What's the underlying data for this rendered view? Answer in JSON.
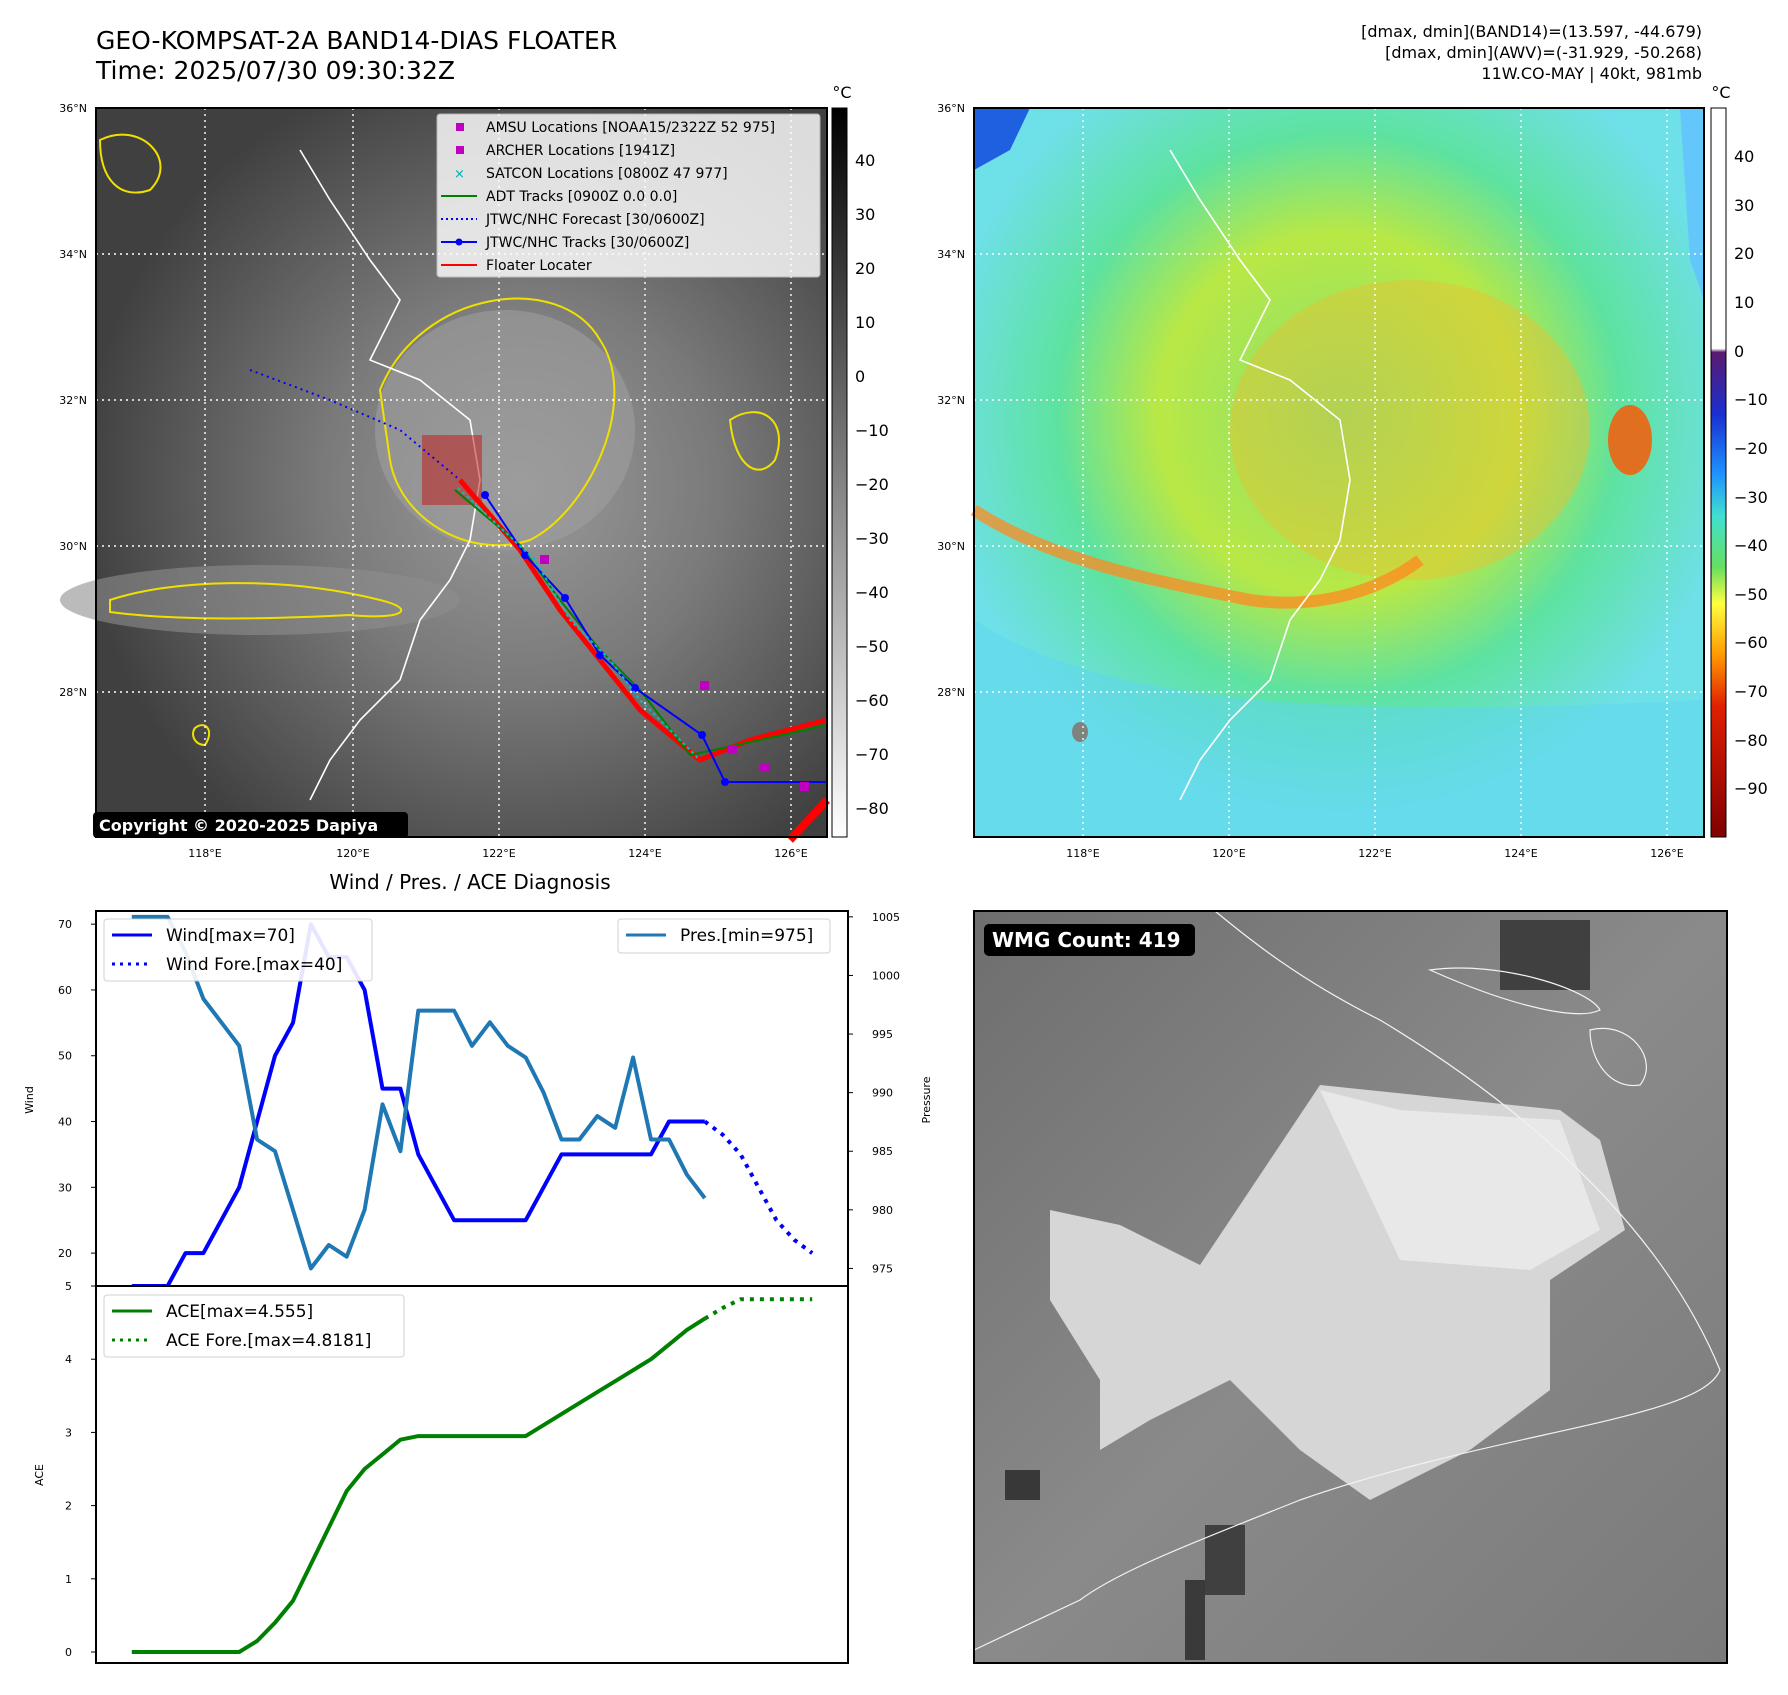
{
  "header": {
    "title": "GEO-KOMPSAT-2A BAND14-DIAS FLOATER",
    "time": "Time: 2025/07/30 09:30:32Z",
    "info_line1": "[dmax, dmin](BAND14)=(13.597, -44.679)",
    "info_line2": "[dmax, dmin](AWV)=(-31.929, -50.268)",
    "info_line3": "11W.CO-MAY | 40kt, 981mb"
  },
  "map": {
    "lat_labels": [
      "36°N",
      "34°N",
      "32°N",
      "30°N",
      "28°N"
    ],
    "lon_labels": [
      "118°E",
      "120°E",
      "122°E",
      "124°E",
      "126°E"
    ],
    "copyright": "Copyright © 2020-2025 Dapiya",
    "colorbar_unit": "°C",
    "gray_colorbar_ticks": [
      "40",
      "30",
      "20",
      "10",
      "0",
      "−10",
      "−20",
      "−30",
      "−40",
      "−50",
      "−60",
      "−70",
      "−80"
    ],
    "color_colorbar_ticks": [
      "40",
      "30",
      "20",
      "10",
      "0",
      "−10",
      "−20",
      "−30",
      "−40",
      "−50",
      "−60",
      "−70",
      "−80",
      "−90"
    ],
    "legend": [
      {
        "label": "AMSU Locations [NOAA15/2322Z 52 975]",
        "color": "#c000c0",
        "marker": "square"
      },
      {
        "label": "ARCHER Locations [1941Z]",
        "color": "#c000c0",
        "marker": "square"
      },
      {
        "label": "SATCON Locations [0800Z 47 977]",
        "color": "#00b0b0",
        "marker": "x"
      },
      {
        "label": "ADT Tracks [0900Z 0.0 0.0]",
        "color": "#008000",
        "marker": "line"
      },
      {
        "label": "JTWC/NHC Forecast [30/0600Z]",
        "color": "#0000ff",
        "marker": "dotted"
      },
      {
        "label": "JTWC/NHC Tracks [30/0600Z]",
        "color": "#0000ff",
        "marker": "line-dot"
      },
      {
        "label": "Floater Locater",
        "color": "#ff0000",
        "marker": "line"
      }
    ],
    "wmg_count": "WMG Count: 419"
  },
  "chart_data": [
    {
      "type": "line",
      "title": "Wind / Pres. / ACE Diagnosis",
      "ylabel": "Wind",
      "y2label": "Pressure",
      "ylim": [
        15,
        72
      ],
      "y2lim": [
        973.5,
        1005.5
      ],
      "yticks": [
        20,
        30,
        40,
        50,
        60,
        70
      ],
      "y2ticks": [
        975,
        980,
        985,
        990,
        995,
        1000,
        1005
      ],
      "series": [
        {
          "name": "Wind[max=70]",
          "axis": "left",
          "color": "#0000ff",
          "style": "solid",
          "x": [
            0,
            1,
            2,
            3,
            4,
            5,
            6,
            7,
            8,
            9,
            10,
            11,
            12,
            13,
            14,
            15,
            16,
            17,
            18,
            19,
            20,
            21,
            22,
            23,
            24,
            25,
            26,
            27,
            28,
            29,
            30,
            31,
            32
          ],
          "values": [
            15,
            15,
            15,
            20,
            20,
            25,
            30,
            40,
            50,
            55,
            70,
            65,
            65,
            60,
            45,
            45,
            35,
            30,
            25,
            25,
            25,
            25,
            25,
            30,
            35,
            35,
            35,
            35,
            35,
            35,
            40,
            40,
            40
          ]
        },
        {
          "name": "Wind Fore.[max=40]",
          "axis": "left",
          "color": "#0000ff",
          "style": "dotted",
          "x": [
            32,
            33,
            34,
            35,
            36,
            37,
            38
          ],
          "values": [
            40,
            38,
            35,
            30,
            25,
            22,
            20
          ]
        },
        {
          "name": "Pres.[min=975]",
          "axis": "right",
          "color": "#1f77b4",
          "style": "solid",
          "x": [
            0,
            1,
            2,
            3,
            4,
            5,
            6,
            7,
            8,
            9,
            10,
            11,
            12,
            13,
            14,
            15,
            16,
            17,
            18,
            19,
            20,
            21,
            22,
            23,
            24,
            25,
            26,
            27,
            28,
            29,
            30,
            31,
            32
          ],
          "values": [
            1005,
            1005,
            1005,
            1002,
            998,
            996,
            994,
            986,
            985,
            980,
            975,
            977,
            976,
            980,
            989,
            985,
            997,
            997,
            997,
            994,
            996,
            994,
            993,
            990,
            986,
            986,
            988,
            987,
            993,
            986,
            986,
            983,
            981
          ]
        }
      ]
    },
    {
      "type": "line",
      "ylabel": "ACE",
      "ylim": [
        -0.15,
        5.0
      ],
      "yticks": [
        0,
        1,
        2,
        3,
        4,
        5
      ],
      "series": [
        {
          "name": "ACE[max=4.555]",
          "color": "#008000",
          "style": "solid",
          "x": [
            0,
            1,
            2,
            3,
            4,
            5,
            6,
            7,
            8,
            9,
            10,
            11,
            12,
            13,
            14,
            15,
            16,
            17,
            18,
            19,
            20,
            21,
            22,
            23,
            24,
            25,
            26,
            27,
            28,
            29,
            30,
            31,
            32
          ],
          "values": [
            0,
            0,
            0,
            0,
            0,
            0,
            0,
            0.15,
            0.4,
            0.7,
            1.2,
            1.7,
            2.2,
            2.5,
            2.7,
            2.9,
            2.95,
            2.95,
            2.95,
            2.95,
            2.95,
            2.95,
            2.95,
            3.1,
            3.25,
            3.4,
            3.55,
            3.7,
            3.85,
            4.0,
            4.2,
            4.4,
            4.555
          ]
        },
        {
          "name": "ACE Fore.[max=4.8181]",
          "color": "#008000",
          "style": "dotted",
          "x": [
            32,
            33,
            34,
            35,
            36,
            37,
            38
          ],
          "values": [
            4.555,
            4.7,
            4.8181,
            4.8181,
            4.8181,
            4.8181,
            4.8181
          ]
        }
      ]
    }
  ]
}
